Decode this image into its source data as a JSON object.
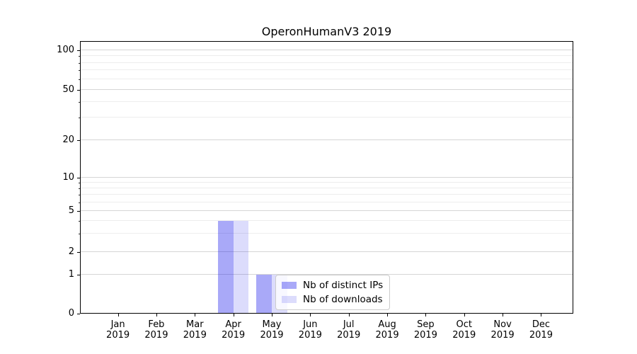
{
  "title": "OperonHumanV3 2019",
  "chart_data": {
    "type": "bar",
    "title": "OperonHumanV3 2019",
    "categories": [
      "Jan 2019",
      "Feb 2019",
      "Mar 2019",
      "Apr 2019",
      "May 2019",
      "Jun 2019",
      "Jul 2019",
      "Aug 2019",
      "Sep 2019",
      "Oct 2019",
      "Nov 2019",
      "Dec 2019"
    ],
    "series": [
      {
        "name": "Nb of distinct IPs",
        "values": [
          0,
          0,
          0,
          4,
          1,
          0,
          0,
          0,
          0,
          0,
          0,
          0
        ],
        "color": "rgba(10,10,235,0.35)"
      },
      {
        "name": "Nb of downloads",
        "values": [
          0,
          0,
          0,
          4,
          1,
          0,
          0,
          0,
          0,
          0,
          0,
          0
        ],
        "color": "rgba(10,10,235,0.14)"
      }
    ],
    "yscale": "symlog",
    "yticks": [
      0,
      1,
      2,
      5,
      10,
      20,
      50,
      100
    ],
    "minor_yticks": [
      3,
      4,
      6,
      7,
      8,
      9,
      30,
      40,
      60,
      70,
      80,
      90
    ],
    "ylim": [
      0,
      120
    ],
    "xlabel": "",
    "ylabel": "",
    "grid": "both-horizontal",
    "legend_position": "inside-lower-center"
  },
  "colors": {
    "bar_distinct_ips": "rgba(10,10,235,0.35)",
    "bar_downloads": "rgba(10,10,235,0.14)",
    "grid_major": "#d6d6d6",
    "grid_minor": "#ededed",
    "legend_border": "#cccccc",
    "spine": "#000000"
  }
}
